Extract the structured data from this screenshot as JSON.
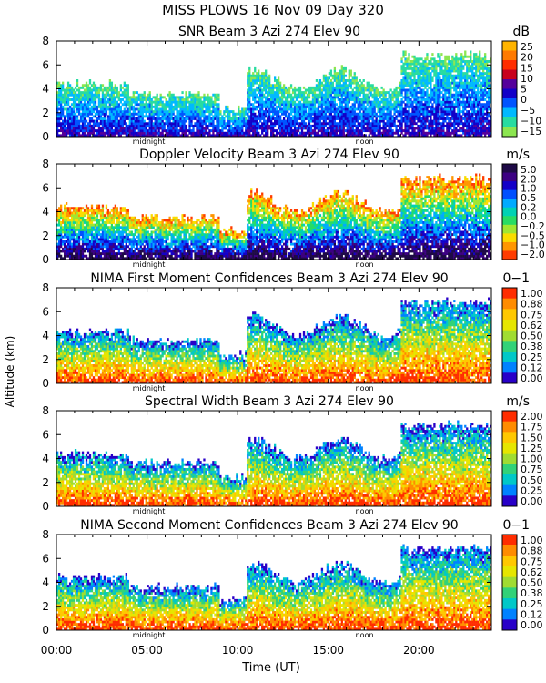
{
  "figure": {
    "title_line1": "MISS PLOWS  16 Nov 09 Day 320",
    "ylabel": "Altitude (km)",
    "xlabel": "Time (UT)",
    "x_ticks": [
      "00:00",
      "05:00",
      "10:00",
      "15:00",
      "20:00"
    ],
    "markers": [
      "midnight",
      "noon"
    ]
  },
  "chart_data": [
    {
      "type": "heatmap",
      "title": "SNR Beam 3 Azi 274 Elev 90",
      "units": "dB",
      "ylabel": "Altitude (km)",
      "xlabel": "Time (UT)",
      "xlim": [
        0,
        24
      ],
      "ylim": [
        0,
        8
      ],
      "y_ticks": [
        0,
        2,
        4,
        6,
        8
      ],
      "colorbar": {
        "labels": [
          "25",
          "20",
          "15",
          "10",
          "5",
          "0",
          "−5",
          "−10",
          "−15"
        ],
        "colors": [
          "#ffb400",
          "#ff7a00",
          "#ff2d00",
          "#c8001e",
          "#55009b",
          "#1200c8",
          "#0055ff",
          "#00b9ff",
          "#28dca0",
          "#8ce650"
        ]
      }
    },
    {
      "type": "heatmap",
      "title": "Doppler Velocity Beam 3 Azi 274 Elev 90",
      "units": "m/s",
      "ylabel": "Altitude (km)",
      "xlabel": "Time (UT)",
      "xlim": [
        0,
        24
      ],
      "ylim": [
        0,
        8
      ],
      "y_ticks": [
        0,
        2,
        4,
        6,
        8
      ],
      "colorbar": {
        "labels": [
          "5.0",
          "2.0",
          "1.0",
          "0.5",
          "0.2",
          "0.0",
          "−0.2",
          "−0.5",
          "−1.0",
          "−2.0"
        ],
        "colors": [
          "#1e0a46",
          "#3c0082",
          "#1400c8",
          "#0050ff",
          "#00aaff",
          "#00d2b4",
          "#28dc64",
          "#a0e632",
          "#fadc00",
          "#ff9600",
          "#ff3c00"
        ]
      }
    },
    {
      "type": "heatmap",
      "title": "NIMA First Moment Confidences Beam 3 Azi 274 Elev 90",
      "units": "0−1",
      "ylabel": "Altitude (km)",
      "xlabel": "Time (UT)",
      "xlim": [
        0,
        24
      ],
      "ylim": [
        0,
        8
      ],
      "y_ticks": [
        0,
        2,
        4,
        6,
        8
      ],
      "colorbar": {
        "labels": [
          "1.00",
          "0.88",
          "0.75",
          "0.62",
          "0.50",
          "0.38",
          "0.25",
          "0.12",
          "0.00"
        ],
        "colors": [
          "#ff2d00",
          "#ff8c00",
          "#ffc800",
          "#e6e600",
          "#a0dc32",
          "#32d278",
          "#00c8c8",
          "#0082ff",
          "#2800c8"
        ]
      }
    },
    {
      "type": "heatmap",
      "title": "Spectral Width Beam 3 Azi 274 Elev 90",
      "units": "m/s",
      "ylabel": "Altitude (km)",
      "xlabel": "Time (UT)",
      "xlim": [
        0,
        24
      ],
      "ylim": [
        0,
        8
      ],
      "y_ticks": [
        0,
        2,
        4,
        6,
        8
      ],
      "colorbar": {
        "labels": [
          "2.00",
          "1.75",
          "1.50",
          "1.25",
          "1.00",
          "0.75",
          "0.50",
          "0.25",
          "0.00"
        ],
        "colors": [
          "#ff2d00",
          "#ff8c00",
          "#ffc800",
          "#e6e600",
          "#a0dc32",
          "#32d278",
          "#00c8c8",
          "#0082ff",
          "#2800c8"
        ]
      }
    },
    {
      "type": "heatmap",
      "title": "NIMA Second Moment Confidences Beam 3 Azi 274 Elev 90",
      "units": "0−1",
      "ylabel": "Altitude (km)",
      "xlabel": "Time (UT)",
      "xlim": [
        0,
        24
      ],
      "ylim": [
        0,
        8
      ],
      "y_ticks": [
        0,
        2,
        4,
        6,
        8
      ],
      "colorbar": {
        "labels": [
          "1.00",
          "0.88",
          "0.75",
          "0.62",
          "0.50",
          "0.38",
          "0.25",
          "0.12",
          "0.00"
        ],
        "colors": [
          "#ff2d00",
          "#ff8c00",
          "#ffc800",
          "#e6e600",
          "#a0dc32",
          "#32d278",
          "#00c8c8",
          "#0082ff",
          "#2800c8"
        ]
      }
    }
  ]
}
